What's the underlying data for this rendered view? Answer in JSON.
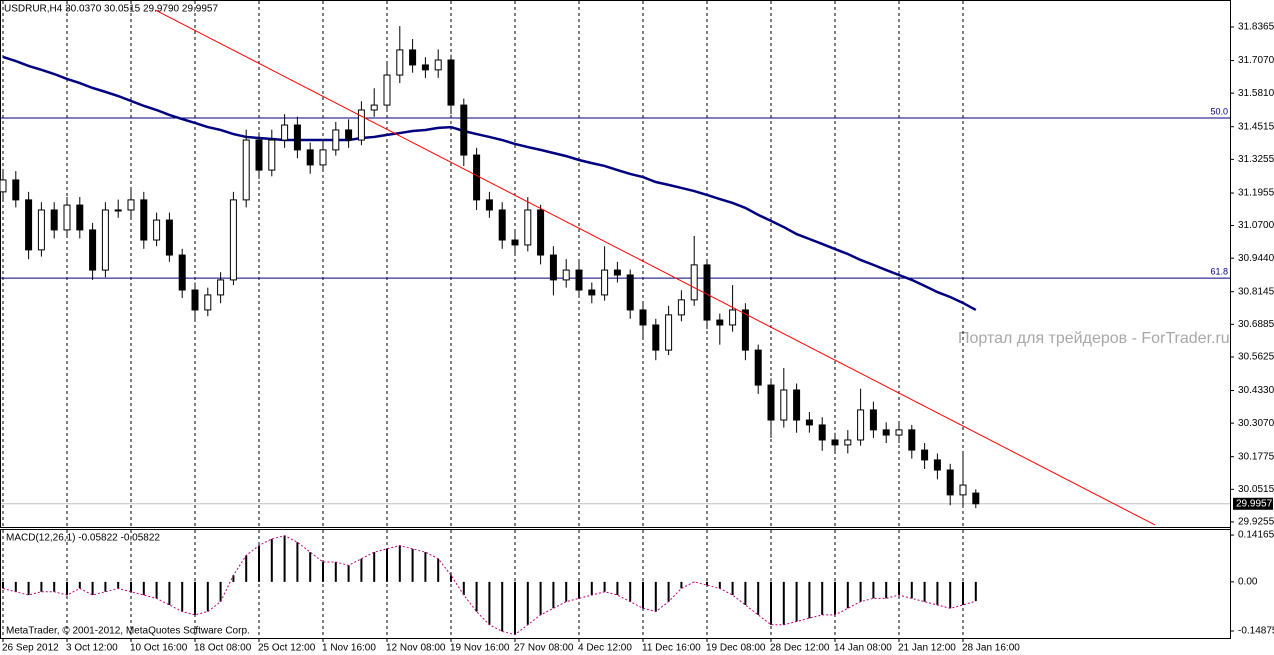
{
  "chart_data": {
    "type": "candlestick",
    "title": "USDRUR,H4 30.0370 30.0515 29.9790 29.9957",
    "categories": [
      "26 Sep 2012",
      null,
      null,
      null,
      null,
      "3 Oct 12:00",
      null,
      null,
      null,
      null,
      "10 Oct 16:00",
      null,
      null,
      null,
      null,
      "18 Oct 08:00",
      null,
      null,
      null,
      null,
      "25 Oct 12:00",
      null,
      null,
      null,
      null,
      "1 Nov 16:00",
      null,
      null,
      null,
      null,
      "12 Nov 08:00",
      null,
      null,
      null,
      null,
      "19 Nov 16:00",
      null,
      null,
      null,
      null,
      "27 Nov 08:00",
      null,
      null,
      null,
      null,
      "4 Dec 12:00",
      null,
      null,
      null,
      null,
      "11 Dec 16:00",
      null,
      null,
      null,
      null,
      "19 Dec 08:00",
      null,
      null,
      null,
      null,
      "28 Dec 12:00",
      null,
      null,
      null,
      null,
      "14 Jan 08:00",
      null,
      null,
      null,
      null,
      "21 Jan 12:00",
      null,
      null,
      null,
      null,
      "28 Jan 16:00",
      null
    ],
    "open": [
      31.2,
      31.246,
      31.169,
      30.976,
      31.13,
      31.053,
      31.149,
      31.053,
      30.898,
      31.13,
      31.13,
      31.169,
      31.014,
      31.091,
      30.956,
      30.821,
      30.744,
      30.802,
      30.86,
      31.169,
      31.4,
      31.284,
      31.4,
      31.458,
      31.362,
      31.304,
      31.362,
      31.439,
      31.4,
      31.516,
      31.535,
      31.651,
      31.748,
      31.69,
      31.671,
      31.709,
      31.535,
      31.342,
      31.169,
      31.13,
      31.014,
      30.995,
      31.13,
      30.956,
      30.86,
      30.898,
      30.821,
      30.802,
      30.898,
      30.879,
      30.744,
      30.686,
      30.589,
      30.725,
      30.783,
      30.918,
      30.705,
      30.686,
      30.744,
      30.589,
      30.454,
      30.319,
      30.435,
      30.319,
      30.3,
      30.242,
      30.223,
      30.242,
      30.358,
      30.281,
      30.261,
      30.281,
      30.203,
      30.165,
      30.126,
      30.03,
      30.037
    ],
    "high": [
      31.28,
      31.28,
      31.2,
      31.16,
      31.16,
      31.18,
      31.18,
      31.08,
      31.16,
      31.17,
      31.21,
      31.2,
      31.12,
      31.12,
      30.98,
      30.85,
      30.83,
      30.89,
      31.2,
      31.44,
      31.43,
      31.44,
      31.5,
      31.49,
      31.39,
      31.4,
      31.47,
      31.48,
      31.55,
      31.6,
      31.7,
      31.84,
      31.79,
      31.72,
      31.75,
      31.73,
      31.56,
      31.37,
      31.2,
      31.16,
      31.05,
      31.18,
      31.15,
      30.99,
      30.94,
      30.93,
      30.85,
      30.99,
      30.93,
      30.9,
      30.77,
      30.71,
      30.76,
      30.82,
      31.03,
      30.94,
      30.73,
      30.84,
      30.77,
      30.61,
      30.48,
      30.52,
      30.46,
      30.35,
      30.33,
      30.27,
      30.28,
      30.44,
      30.39,
      30.31,
      30.31,
      30.3,
      30.23,
      30.19,
      30.15,
      30.19,
      30.0515
    ],
    "low": [
      31.17,
      31.14,
      30.94,
      30.95,
      31.02,
      31.03,
      31.02,
      30.86,
      30.87,
      31.1,
      31.1,
      30.98,
      30.99,
      30.93,
      30.79,
      30.7,
      30.72,
      30.77,
      30.84,
      31.14,
      31.25,
      31.26,
      31.37,
      31.33,
      31.27,
      31.28,
      31.34,
      31.37,
      31.38,
      31.49,
      31.51,
      31.62,
      31.66,
      31.64,
      31.64,
      31.5,
      31.3,
      31.13,
      31.1,
      30.98,
      30.96,
      30.97,
      30.92,
      30.8,
      30.83,
      30.79,
      30.77,
      30.78,
      30.85,
      30.71,
      30.63,
      30.55,
      30.57,
      30.7,
      30.76,
      30.67,
      30.61,
      30.66,
      30.55,
      30.42,
      30.25,
      30.29,
      30.27,
      30.27,
      30.2,
      30.19,
      30.19,
      30.22,
      30.25,
      30.23,
      30.23,
      30.17,
      30.13,
      30.09,
      29.99,
      29.99,
      29.979
    ],
    "close": [
      31.246,
      31.169,
      30.976,
      31.13,
      31.053,
      31.149,
      31.053,
      30.898,
      31.13,
      31.13,
      31.169,
      31.014,
      31.091,
      30.956,
      30.821,
      30.744,
      30.802,
      30.86,
      31.169,
      31.4,
      31.284,
      31.4,
      31.458,
      31.362,
      31.304,
      31.362,
      31.439,
      31.4,
      31.516,
      31.535,
      31.651,
      31.748,
      31.69,
      31.671,
      31.709,
      31.535,
      31.342,
      31.169,
      31.13,
      31.014,
      30.995,
      31.13,
      30.956,
      30.86,
      30.898,
      30.821,
      30.802,
      30.898,
      30.879,
      30.744,
      30.686,
      30.589,
      30.725,
      30.783,
      30.918,
      30.705,
      30.686,
      30.744,
      30.589,
      30.454,
      30.319,
      30.435,
      30.319,
      30.3,
      30.242,
      30.223,
      30.242,
      30.358,
      30.281,
      30.261,
      30.281,
      30.203,
      30.165,
      30.126,
      30.03,
      30.068,
      29.9957
    ],
    "ylim": [
      29.906,
      31.933
    ],
    "yticks": [
      31.8365,
      {
        "value": 31.707,
        "label": "31.7070"
      },
      {
        "value": 31.581,
        "label": "31.5810"
      },
      31.4515,
      31.3255,
      31.1955,
      {
        "value": 31.07,
        "label": "31.0700"
      },
      {
        "value": 30.944,
        "label": "30.9440"
      },
      30.8145,
      30.6885,
      30.5625,
      {
        "value": 30.433,
        "label": "30.4330"
      },
      {
        "value": 30.307,
        "label": "30.3070"
      },
      30.1775,
      30.0515,
      29.9255
    ],
    "grid": true,
    "bull_color": "#ffffff",
    "bear_color": "#000000",
    "moving_average": {
      "color": "#000080",
      "values": [
        31.721,
        31.705,
        31.686,
        31.671,
        31.655,
        31.636,
        31.62,
        31.601,
        31.586,
        31.57,
        31.551,
        31.532,
        31.516,
        31.497,
        31.481,
        31.466,
        31.45,
        31.439,
        31.423,
        31.412,
        31.408,
        31.404,
        31.4,
        31.4,
        31.4,
        31.4,
        31.4,
        31.4,
        31.408,
        31.412,
        31.42,
        31.427,
        31.435,
        31.439,
        31.447,
        31.45,
        31.435,
        31.423,
        31.412,
        31.4,
        31.385,
        31.373,
        31.362,
        31.35,
        31.338,
        31.323,
        31.311,
        31.3,
        31.284,
        31.269,
        31.257,
        31.238,
        31.227,
        31.215,
        31.203,
        31.188,
        31.172,
        31.157,
        31.138,
        31.111,
        31.088,
        31.064,
        31.037,
        31.018,
        30.999,
        30.979,
        30.96,
        30.937,
        30.918,
        30.898,
        30.879,
        30.86,
        30.837,
        30.813,
        30.794,
        30.771,
        30.744
      ]
    },
    "trendline": {
      "color": "#ff0000",
      "x": [
        11.9,
        90
      ],
      "values": [
        31.902,
        29.914
      ]
    },
    "levels": [
      {
        "label": "50.0",
        "value": 31.485,
        "color": "#000080"
      },
      {
        "label": "61.8",
        "value": 30.867,
        "color": "#000080"
      }
    ],
    "last_price": {
      "value": 29.9957,
      "label": "29.9957"
    },
    "watermark": "Портал для трейдеров - ForTrader.ru",
    "footer": "MetaTrader, © 2001-2012, MetaQuotes Software Corp.",
    "indicator": {
      "type": "histogram",
      "title": "MACD(12,26,1) -0.05822 -0.05822",
      "color": "#000000",
      "line_color": "#c0007f",
      "values": [
        -0.02,
        -0.03,
        -0.04,
        -0.03,
        -0.03,
        -0.04,
        -0.02,
        -0.04,
        -0.03,
        -0.02,
        -0.03,
        -0.04,
        -0.05,
        -0.07,
        -0.09,
        -0.1,
        -0.09,
        -0.06,
        0.02,
        0.08,
        0.11,
        0.13,
        0.14,
        0.12,
        0.09,
        0.06,
        0.06,
        0.05,
        0.07,
        0.09,
        0.1,
        0.11,
        0.1,
        0.09,
        0.07,
        0.02,
        -0.04,
        -0.09,
        -0.13,
        -0.15,
        -0.16,
        -0.13,
        -0.1,
        -0.08,
        -0.06,
        -0.05,
        -0.04,
        -0.03,
        -0.04,
        -0.06,
        -0.08,
        -0.09,
        -0.06,
        -0.02,
        0.0,
        -0.01,
        -0.02,
        -0.04,
        -0.07,
        -0.1,
        -0.13,
        -0.13,
        -0.12,
        -0.11,
        -0.1,
        -0.1,
        -0.08,
        -0.06,
        -0.05,
        -0.05,
        -0.04,
        -0.05,
        -0.06,
        -0.07,
        -0.08,
        -0.07,
        -0.05822
      ],
      "ylim": [
        -0.17,
        0.16
      ],
      "yticks": [
        0.14165,
        {
          "value": 0,
          "label": "0.00"
        },
        -0.14875
      ]
    }
  }
}
